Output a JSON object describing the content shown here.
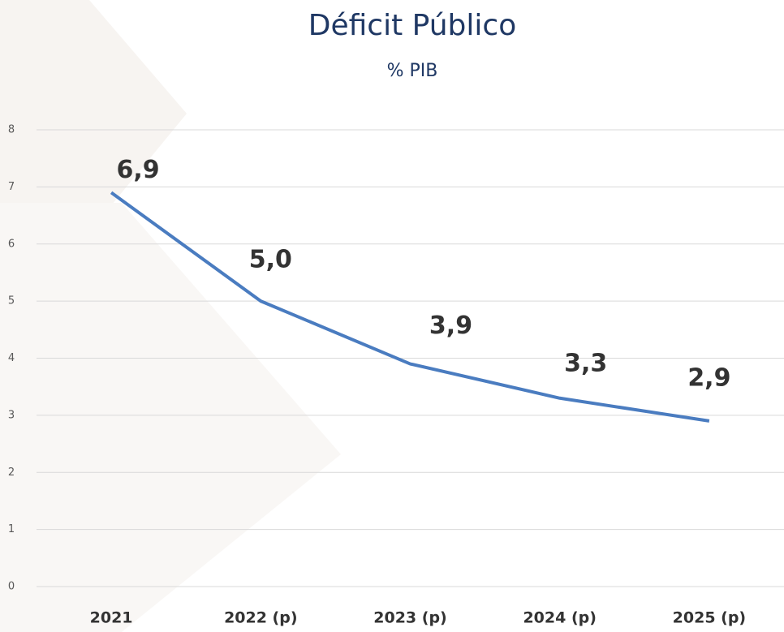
{
  "chart_data": {
    "type": "line",
    "title": "Déficit Público",
    "subtitle": "% PIB",
    "categories": [
      "2021",
      "2022 (p)",
      "2023 (p)",
      "2024 (p)",
      "2025 (p)"
    ],
    "series": [
      {
        "name": "Déficit Público",
        "color": "#4a7cc0",
        "values": [
          6.9,
          5.0,
          3.9,
          3.3,
          2.9
        ],
        "value_labels": [
          "6,9",
          "5,0",
          "3,9",
          "3,3",
          "2,9"
        ]
      }
    ],
    "ylim": [
      0,
      8
    ],
    "yticks": [
      0,
      1,
      2,
      3,
      4,
      5,
      6,
      7,
      8
    ],
    "grid": true
  }
}
